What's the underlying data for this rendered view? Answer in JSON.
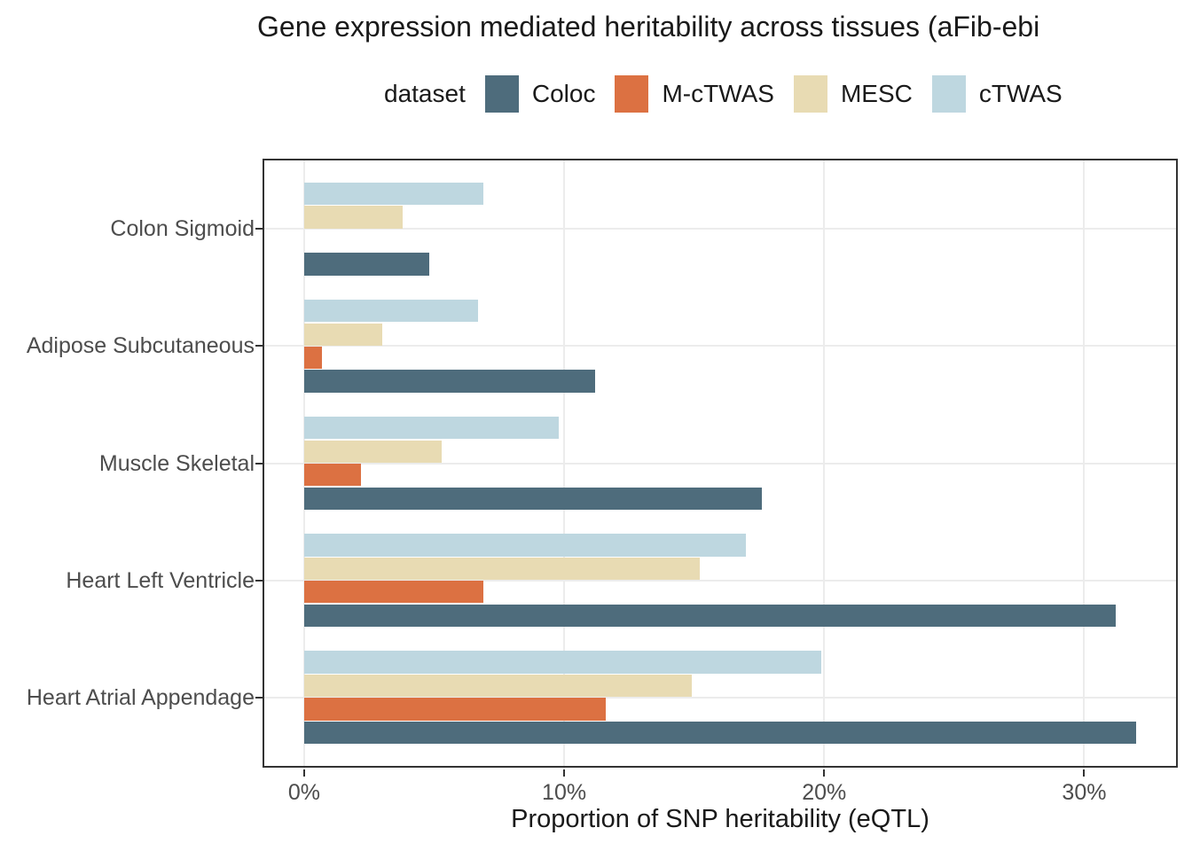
{
  "chart_data": {
    "type": "bar",
    "orientation": "horizontal",
    "title": "Gene expression mediated heritability across tissues (aFib-ebi",
    "xlabel": "Proportion of SNP heritability (eQTL)",
    "legend_title": "dataset",
    "legend_position": "top",
    "grid": true,
    "x_tick_labels": [
      "0%",
      "10%",
      "20%",
      "30%"
    ],
    "x_tick_values": [
      0,
      10,
      20,
      30
    ],
    "xlim": [
      -1.6,
      33.6
    ],
    "value_unit": "percent",
    "categories": [
      "Colon Sigmoid",
      "Adipose Subcutaneous",
      "Muscle Skeletal",
      "Heart Left Ventricle",
      "Heart Atrial Appendage"
    ],
    "series": [
      {
        "name": "Coloc",
        "color": "#4e6c7c",
        "values": [
          4.8,
          11.2,
          17.6,
          31.2,
          32.0
        ]
      },
      {
        "name": "M-cTWAS",
        "color": "#dc7142",
        "values": [
          0,
          0.7,
          2.2,
          6.9,
          11.6
        ]
      },
      {
        "name": "MESC",
        "color": "#e8dbb3",
        "values": [
          3.8,
          3.0,
          5.3,
          15.2,
          14.9
        ]
      },
      {
        "name": "cTWAS",
        "color": "#bed7e0",
        "values": [
          6.9,
          6.7,
          9.8,
          17.0,
          19.9
        ]
      }
    ],
    "dodge_order_top_to_bottom": [
      "cTWAS",
      "MESC",
      "M-cTWAS",
      "Coloc"
    ],
    "style": {
      "grid_color": "#ececec",
      "panel_border_color": "#333333",
      "axis_text_color": "#4d4d4d",
      "text_color": "#1a1a1a"
    }
  }
}
